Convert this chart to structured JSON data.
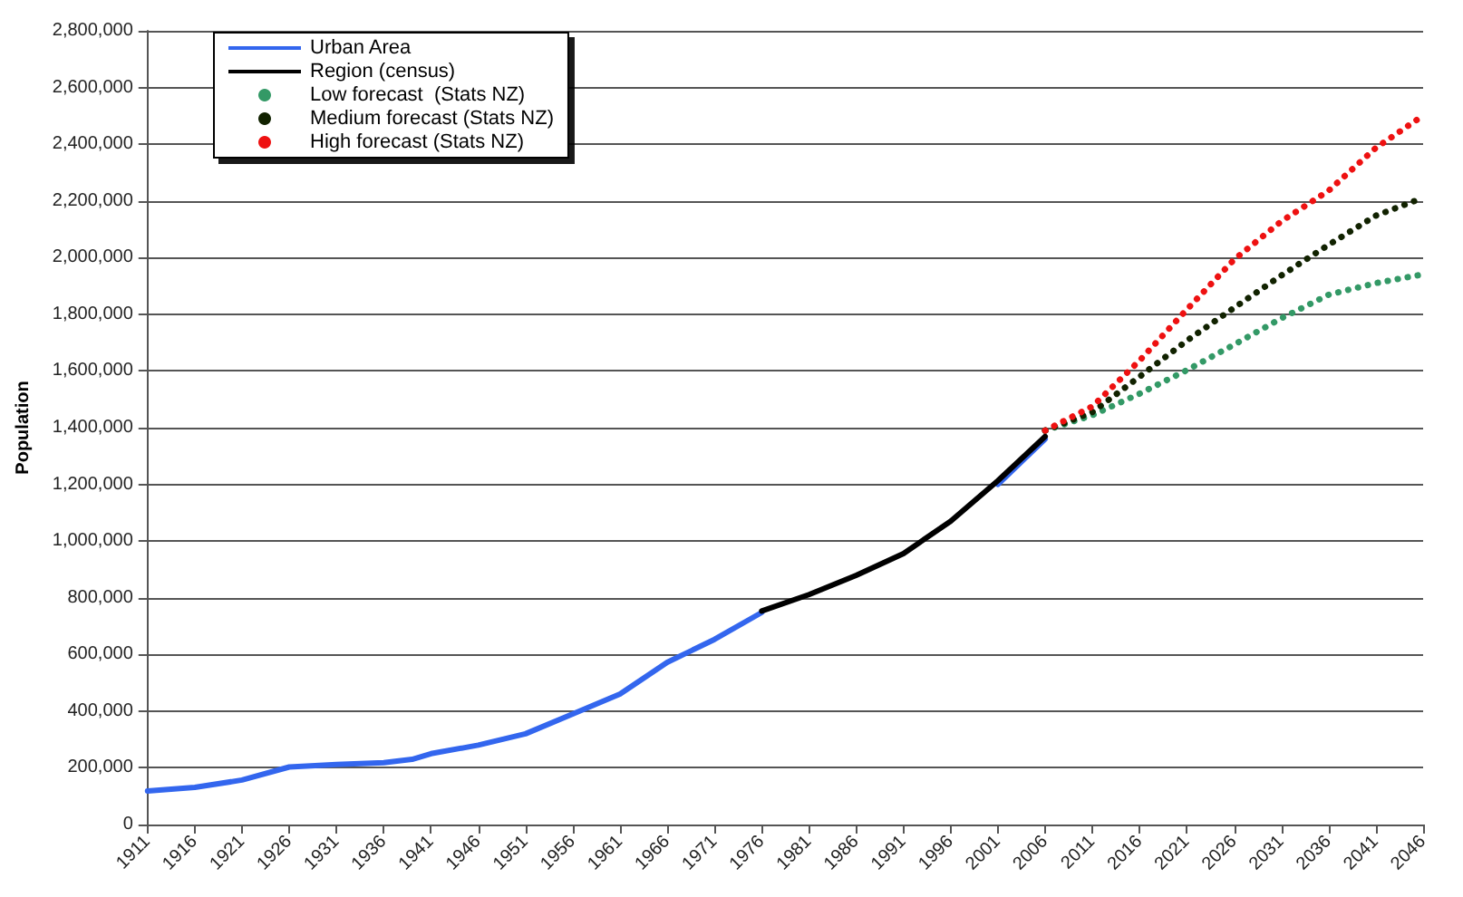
{
  "chart_data": {
    "type": "line",
    "ylabel": "Population",
    "xlim": [
      1911,
      2046
    ],
    "xticks": [
      1911,
      1916,
      1921,
      1926,
      1931,
      1936,
      1941,
      1946,
      1951,
      1956,
      1961,
      1966,
      1971,
      1976,
      1981,
      1986,
      1991,
      1996,
      2001,
      2006,
      2011,
      2016,
      2021,
      2026,
      2031,
      2036,
      2041,
      2046
    ],
    "ylim": [
      0,
      2800000
    ],
    "yticks": [
      {
        "value": 0,
        "label": "0"
      },
      {
        "value": 200000,
        "label": "200,000"
      },
      {
        "value": 400000,
        "label": "400,000"
      },
      {
        "value": 600000,
        "label": "600,000"
      },
      {
        "value": 800000,
        "label": "800,000"
      },
      {
        "value": 1000000,
        "label": "1,000,000"
      },
      {
        "value": 1200000,
        "label": "1,200,000"
      },
      {
        "value": 1400000,
        "label": "1,400,000"
      },
      {
        "value": 1600000,
        "label": "1,600,000"
      },
      {
        "value": 1800000,
        "label": "1,800,000"
      },
      {
        "value": 2000000,
        "label": "2,000,000"
      },
      {
        "value": 2200000,
        "label": "2,200,000"
      },
      {
        "value": 2400000,
        "label": "2,400,000"
      },
      {
        "value": 2600000,
        "label": "2,600,000"
      },
      {
        "value": 2800000,
        "label": "2,800,000"
      }
    ],
    "grid": "y",
    "legend": "top left",
    "marker": "none",
    "series": [
      {
        "name": "Urban Area",
        "color": "#3366ee",
        "x": [
          1911,
          1916,
          1921,
          1926,
          1931,
          1936,
          1939,
          1941,
          1946,
          1951,
          1956,
          1961,
          1966,
          1971,
          1976,
          1991,
          2001,
          2006
        ],
        "values": [
          118000,
          131000,
          157000,
          203000,
          212000,
          218000,
          230000,
          250000,
          280000,
          320000,
          390000,
          460000,
          572000,
          653000,
          748000,
          null,
          1200000,
          1360000
        ]
      },
      {
        "name": "Region (census)",
        "color": "#000000",
        "x": [
          1976,
          1981,
          1986,
          1991,
          1996,
          2001,
          2006
        ],
        "values": [
          753000,
          811000,
          879000,
          956000,
          1070000,
          1213000,
          1369000
        ]
      },
      {
        "name": "Low forecast  (Stats NZ)",
        "color": "#339966",
        "line_style": "dotted",
        "x": [
          2006,
          2011,
          2016,
          2021,
          2026,
          2031,
          2036,
          2041,
          2046
        ],
        "values": [
          1390000,
          1444000,
          1520000,
          1603000,
          1693000,
          1786000,
          1869000,
          1910000,
          1941000
        ]
      },
      {
        "name": "Medium forecast (Stats NZ)",
        "color": "#112200",
        "line_style": "dotted",
        "x": [
          2006,
          2011,
          2016,
          2021,
          2026,
          2031,
          2036,
          2041,
          2046
        ],
        "values": [
          1390000,
          1455000,
          1580000,
          1707000,
          1823000,
          1937000,
          2045000,
          2148000,
          2211000
        ]
      },
      {
        "name": "High forecast (Stats NZ)",
        "color": "#ee1111",
        "line_style": "dotted",
        "x": [
          2006,
          2011,
          2016,
          2021,
          2026,
          2031,
          2036,
          2041,
          2046
        ],
        "values": [
          1390000,
          1475000,
          1637000,
          1817000,
          1993000,
          2128000,
          2236000,
          2387000,
          2501000
        ]
      }
    ]
  }
}
